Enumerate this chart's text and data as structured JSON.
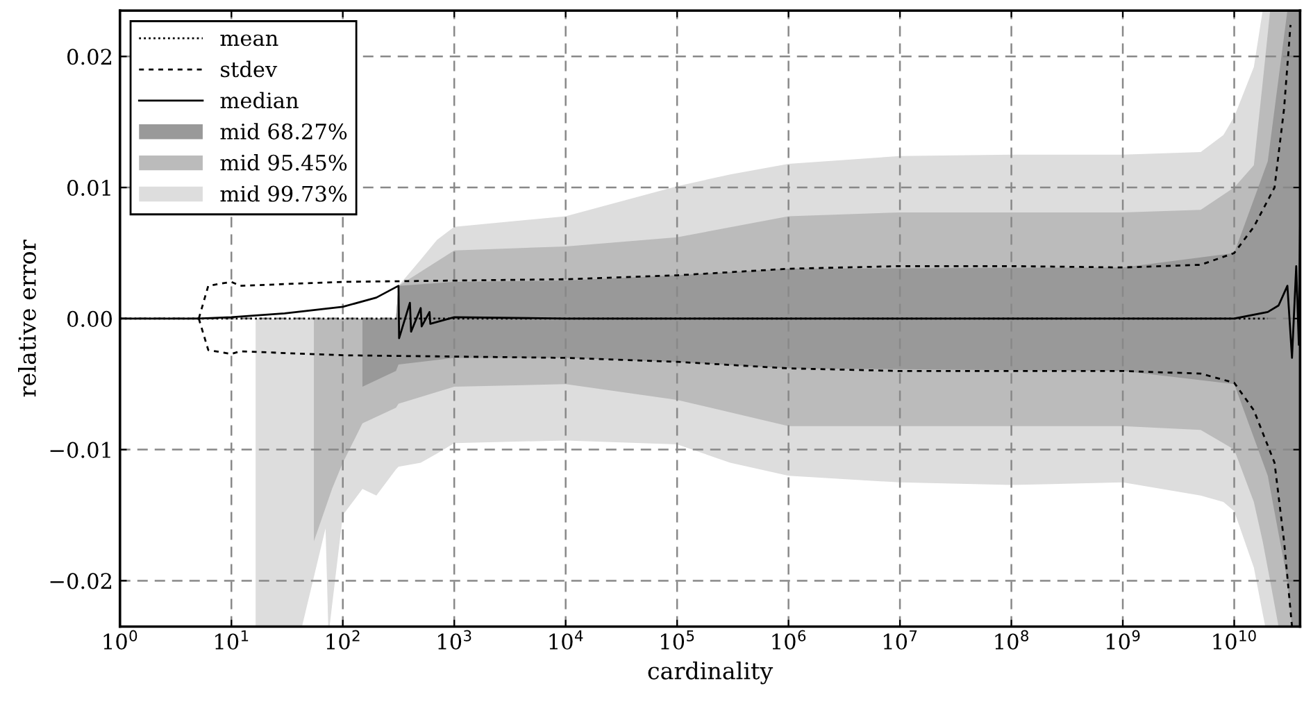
{
  "chart_data": {
    "type": "area",
    "xlabel": "cardinality",
    "ylabel": "relative error",
    "log": "x",
    "grid": true,
    "legend": "top left",
    "xlim": [
      1,
      39000000000
    ],
    "ylim": [
      -0.0235,
      0.0235
    ],
    "xticks": [
      {
        "value": 1,
        "label": "10$^{0}$"
      },
      {
        "value": 10,
        "label": "10$^{1}$"
      },
      {
        "value": 100,
        "label": "10$^{2}$"
      },
      {
        "value": 1000,
        "label": "10$^{3}$"
      },
      {
        "value": 10000,
        "label": "10$^{4}$"
      },
      {
        "value": 100000,
        "label": "10$^{5}$"
      },
      {
        "value": 1000000,
        "label": "10$^{6}$"
      },
      {
        "value": 10000000,
        "label": "10$^{7}$"
      },
      {
        "value": 100000000,
        "label": "10$^{8}$"
      },
      {
        "value": 1000000000,
        "label": "10$^{9}$"
      },
      {
        "value": 10000000000,
        "label": "10$^{10}$"
      }
    ],
    "yticks": [
      {
        "value": -0.02,
        "label": "−0.02"
      },
      {
        "value": -0.01,
        "label": "−0.01"
      },
      {
        "value": 0,
        "label": "0.00"
      },
      {
        "value": 0.01,
        "label": "0.01"
      },
      {
        "value": 0.02,
        "label": "0.02"
      }
    ],
    "series": [
      {
        "name": "mean",
        "type": "line",
        "line_style": "dotted",
        "color": "#000000",
        "x": [
          1,
          10,
          100,
          1000,
          10000,
          100000,
          1000000,
          10000000,
          100000000,
          1000000000,
          10000000000,
          20000000000
        ],
        "values": [
          0,
          0,
          0,
          0,
          0,
          0,
          0,
          0,
          0,
          0,
          0,
          0
        ]
      },
      {
        "name": "stdev",
        "type": "line",
        "line_style": "dashed",
        "color": "#000000",
        "x": [
          5.1,
          6.2,
          10,
          12,
          100,
          1000,
          10000,
          100000,
          1000000,
          10000000,
          100000000,
          1000000000,
          5000000000,
          10000000000,
          15000000000,
          23000000000,
          28000000000,
          32000000000
        ],
        "values": [
          0,
          0.0025,
          0.0028,
          0.0025,
          0.0028,
          0.0029,
          0.003,
          0.0033,
          0.0038,
          0.004,
          0.004,
          0.0039,
          0.0041,
          0.005,
          0.007,
          0.01,
          0.016,
          0.0224
        ]
      },
      {
        "type": "line",
        "line_style": "dashed",
        "color": "#000000",
        "x": [
          5.1,
          6.2,
          10,
          12,
          100,
          1000,
          10000,
          100000,
          1000000,
          10000000,
          100000000,
          1000000000,
          5000000000,
          10000000000,
          15000000000,
          23000000000,
          28000000000,
          33000000000
        ],
        "values": [
          0,
          -0.0024,
          -0.0027,
          -0.0025,
          -0.0028,
          -0.0029,
          -0.003,
          -0.0033,
          -0.0038,
          -0.004,
          -0.004,
          -0.004,
          -0.0042,
          -0.0049,
          -0.007,
          -0.011,
          -0.017,
          -0.0235
        ]
      },
      {
        "name": "median",
        "type": "line",
        "line_style": "solid",
        "color": "#000000",
        "x": [
          1,
          5,
          10,
          30,
          100,
          200,
          316,
          320,
          400,
          410,
          500,
          510,
          600,
          610,
          1000,
          10000,
          100000,
          1000000,
          10000000000,
          20000000000,
          25000000000,
          30000000000,
          33000000000,
          36000000000,
          38000000000,
          39000000000
        ],
        "values": [
          0,
          0,
          0.0001,
          0.0004,
          0.0009,
          0.0016,
          0.0025,
          -0.0015,
          0.0012,
          -0.001,
          0.0008,
          -0.0006,
          0.0005,
          -0.0004,
          0.0001,
          0,
          0,
          0,
          0,
          0.0005,
          0.001,
          0.0025,
          -0.003,
          0.004,
          -0.002,
          0.007
        ]
      },
      {
        "name": "mid 68.27%",
        "color": "#999999",
        "x": [
          150,
          300,
          316,
          1000,
          10000,
          100000,
          1000000,
          1000000000,
          10000000000,
          20000000000,
          30000000000,
          33000000000,
          39000000000
        ],
        "values": [
          null,
          null,
          null,
          null,
          null,
          null,
          null,
          null,
          null,
          null,
          null,
          null,
          null
        ],
        "lower": [
          -0.0052,
          -0.004,
          -0.0035,
          -0.003,
          -0.003,
          -0.0033,
          -0.0038,
          -0.004,
          -0.005,
          -0.012,
          -0.02,
          -0.0235,
          -0.0235
        ],
        "upper": [
          0,
          0,
          0.0025,
          0.0028,
          0.0029,
          0.0033,
          0.0038,
          0.0039,
          0.005,
          0.012,
          0.0235,
          0.0235,
          0.0235
        ]
      },
      {
        "name": "mid 95.45%",
        "color": "#bbbbbb",
        "x": [
          55,
          80,
          100,
          150,
          300,
          316,
          1000,
          10000,
          100000,
          1000000,
          10000000,
          1000000000,
          5000000000,
          10000000000,
          15000000000,
          18000000000,
          21000000000,
          25000000000,
          39000000000
        ],
        "values": [
          null,
          null,
          null,
          null,
          null,
          null,
          null,
          null,
          null,
          null,
          null,
          null,
          null,
          null,
          null,
          null,
          null,
          null,
          null
        ],
        "lower": [
          -0.017,
          -0.013,
          -0.011,
          -0.008,
          -0.0068,
          -0.0065,
          -0.0052,
          -0.005,
          -0.0062,
          -0.0082,
          -0.0082,
          -0.0082,
          -0.0085,
          -0.01,
          -0.014,
          -0.017,
          -0.02,
          -0.0235,
          -0.0235
        ],
        "upper": [
          0,
          0,
          0,
          0,
          0,
          0.0025,
          0.0052,
          0.0055,
          0.0062,
          0.0078,
          0.0081,
          0.0081,
          0.0083,
          0.01,
          0.0117,
          0.018,
          0.0235,
          0.0235,
          0.0235
        ]
      },
      {
        "name": "mid 99.73%",
        "color": "#dddddd",
        "values": [
          null,
          null,
          null,
          null,
          null,
          null,
          null,
          null,
          null,
          null,
          null,
          null,
          null,
          null,
          null,
          null,
          null,
          null,
          null,
          null,
          null,
          null,
          null,
          null,
          null,
          null,
          null
        ],
        "x": [
          16.5,
          43,
          70,
          74,
          76,
          100,
          150,
          200,
          300,
          316,
          500,
          700,
          1000,
          10000,
          100000,
          300000,
          1000000,
          10000000,
          100000000,
          1000000000,
          5000000000,
          8000000000,
          10000000000,
          15000000000,
          18000000000,
          19000000000,
          39000000000
        ],
        "lower": [
          -0.0235,
          -0.0235,
          -0.016,
          -0.0235,
          -0.0235,
          -0.015,
          -0.013,
          -0.0135,
          -0.0115,
          -0.0113,
          -0.011,
          -0.0103,
          -0.0095,
          -0.0093,
          -0.0096,
          -0.011,
          -0.012,
          -0.0125,
          -0.0127,
          -0.0125,
          -0.0135,
          -0.014,
          -0.0147,
          -0.019,
          -0.0225,
          -0.0235,
          -0.0235
        ],
        "upper": [
          0,
          0,
          0,
          0,
          0,
          0,
          0,
          0,
          0,
          0.0025,
          0.0045,
          0.006,
          0.007,
          0.0078,
          0.0101,
          0.011,
          0.0118,
          0.0124,
          0.0125,
          0.0125,
          0.0127,
          0.014,
          0.0154,
          0.0192,
          0.0235,
          0.0235,
          0.0235
        ]
      }
    ]
  }
}
